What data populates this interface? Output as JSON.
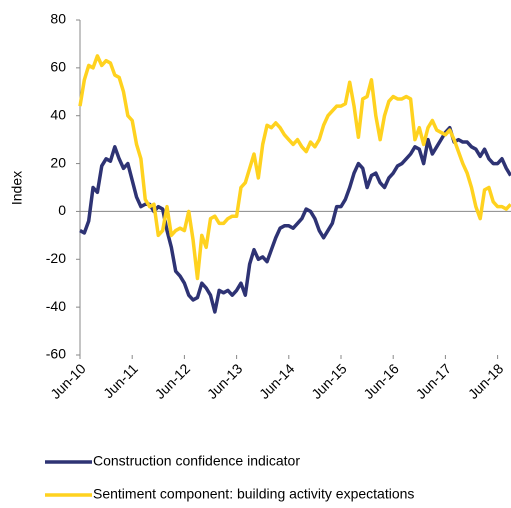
{
  "chart_data": {
    "type": "line",
    "y_label": "Index",
    "categories": [
      "Jun-10",
      null,
      null,
      null,
      null,
      null,
      null,
      null,
      null,
      null,
      null,
      null,
      "Jun-11",
      null,
      null,
      null,
      null,
      null,
      null,
      null,
      null,
      null,
      null,
      null,
      "Jun-12",
      null,
      null,
      null,
      null,
      null,
      null,
      null,
      null,
      null,
      null,
      null,
      "Jun-13",
      null,
      null,
      null,
      null,
      null,
      null,
      null,
      null,
      null,
      null,
      null,
      "Jun-14",
      null,
      null,
      null,
      null,
      null,
      null,
      null,
      null,
      null,
      null,
      null,
      "Jun-15",
      null,
      null,
      null,
      null,
      null,
      null,
      null,
      null,
      null,
      null,
      null,
      "Jun-16",
      null,
      null,
      null,
      null,
      null,
      null,
      null,
      null,
      null,
      null,
      null,
      "Jun-17",
      null,
      null,
      null,
      null,
      null,
      null,
      null,
      null,
      null,
      null,
      null,
      "Jun-18",
      null,
      null,
      null
    ],
    "series": [
      {
        "name": "Construction confidence indicator",
        "color": "#2e3374",
        "values": [
          -8,
          -9,
          -4,
          10,
          8,
          19,
          22,
          21,
          27,
          22,
          18,
          20,
          13,
          6,
          2,
          3,
          3,
          0,
          2,
          1,
          -8,
          -15,
          -25,
          -27,
          -30,
          -35,
          -37,
          -36,
          -30,
          -32,
          -35,
          -42,
          -33,
          -34,
          -33,
          -35,
          -33,
          -30,
          -35,
          -22,
          -16,
          -20,
          -19,
          -21,
          -16,
          -11,
          -7,
          -6,
          -6,
          -7,
          -5,
          -3,
          1,
          0,
          -3,
          -8,
          -11,
          -8,
          -5,
          2,
          2,
          5,
          10,
          16,
          20,
          18,
          10,
          15,
          16,
          12,
          10,
          14,
          16,
          19,
          20,
          22,
          24,
          27,
          26,
          20,
          30,
          24,
          27,
          30,
          33,
          35,
          29,
          30,
          29,
          29,
          27,
          26,
          23,
          26,
          22,
          20,
          20,
          22,
          18,
          15
        ]
      },
      {
        "name": "Sentiment component: building activity expectations",
        "color": "#ffd21f",
        "values": [
          44,
          55,
          61,
          60,
          65,
          61,
          63,
          62,
          57,
          56,
          50,
          40,
          38,
          28,
          22,
          5,
          2,
          3,
          -10,
          -8,
          2,
          -10,
          -8,
          -7,
          -8,
          0,
          -12,
          -28,
          -10,
          -15,
          -3,
          -2,
          -5,
          -5,
          -3,
          -2,
          -2,
          10,
          12,
          18,
          24,
          14,
          28,
          36,
          35,
          37,
          35,
          32,
          30,
          28,
          30,
          27,
          25,
          29,
          27,
          30,
          36,
          40,
          42,
          44,
          44,
          45,
          54,
          44,
          31,
          47,
          48,
          55,
          40,
          30,
          40,
          46,
          48,
          47,
          47,
          48,
          47,
          30,
          35,
          28,
          35,
          38,
          34,
          33,
          32,
          34,
          30,
          25,
          20,
          16,
          10,
          2,
          -3,
          9,
          10,
          4,
          2,
          2,
          1,
          3
        ]
      }
    ],
    "ylim": [
      -60,
      80
    ],
    "yticks": [
      -60,
      -40,
      -20,
      0,
      20,
      40,
      60,
      80
    ]
  }
}
